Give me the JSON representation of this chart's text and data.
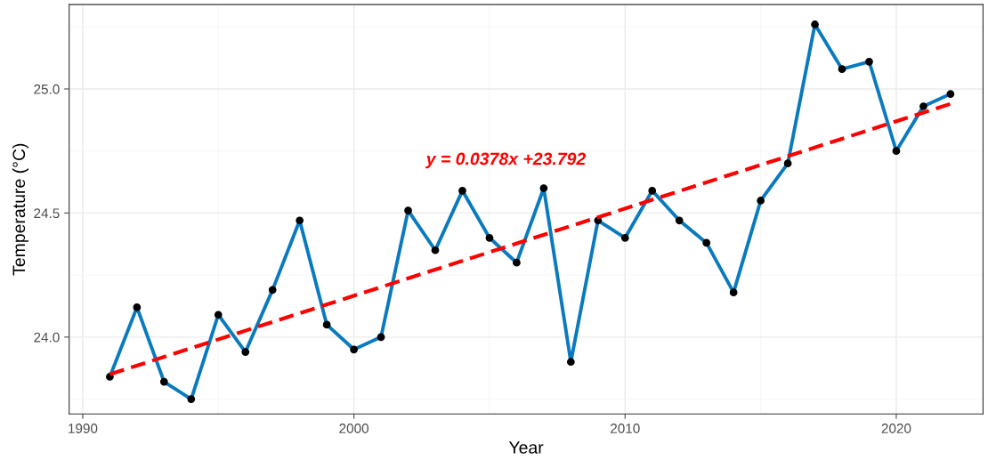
{
  "chart_data": {
    "type": "line",
    "xlabel": "Year",
    "ylabel": "Temperature (°C)",
    "x": [
      1991,
      1992,
      1993,
      1994,
      1995,
      1996,
      1997,
      1998,
      1999,
      2000,
      2001,
      2002,
      2003,
      2004,
      2005,
      2006,
      2007,
      2008,
      2009,
      2010,
      2011,
      2012,
      2013,
      2014,
      2015,
      2016,
      2017,
      2018,
      2019,
      2020,
      2021,
      2022
    ],
    "series": [
      {
        "color": "#0a7abf",
        "marker": "circle",
        "line_style": "solid",
        "values": [
          23.84,
          24.12,
          23.82,
          23.75,
          24.09,
          23.94,
          24.19,
          24.47,
          24.05,
          23.95,
          24.0,
          24.51,
          24.35,
          24.59,
          24.4,
          24.3,
          24.6,
          23.9,
          24.47,
          24.4,
          24.59,
          24.47,
          24.38,
          24.18,
          24.55,
          24.7,
          25.26,
          25.08,
          25.11,
          24.75,
          24.93,
          24.98
        ]
      },
      {
        "type": "line",
        "color": "#ff0000",
        "marker": "none",
        "line_style": "dashed",
        "x": [
          1991,
          2022
        ],
        "values": [
          23.85,
          24.94
        ]
      }
    ],
    "annotations": [
      "y = 0.0378x +23.792"
    ],
    "xlim": [
      1989.5,
      2023.2
    ],
    "ylim": [
      23.69,
      25.34
    ],
    "xticks": [
      1990,
      2000,
      2010,
      2020
    ],
    "yticks": [
      {
        "value": 24.0,
        "label": "24.0"
      },
      {
        "value": 24.5,
        "label": "24.5"
      },
      {
        "value": 25.0,
        "label": "25.0"
      }
    ],
    "grid": true,
    "legend": false
  }
}
